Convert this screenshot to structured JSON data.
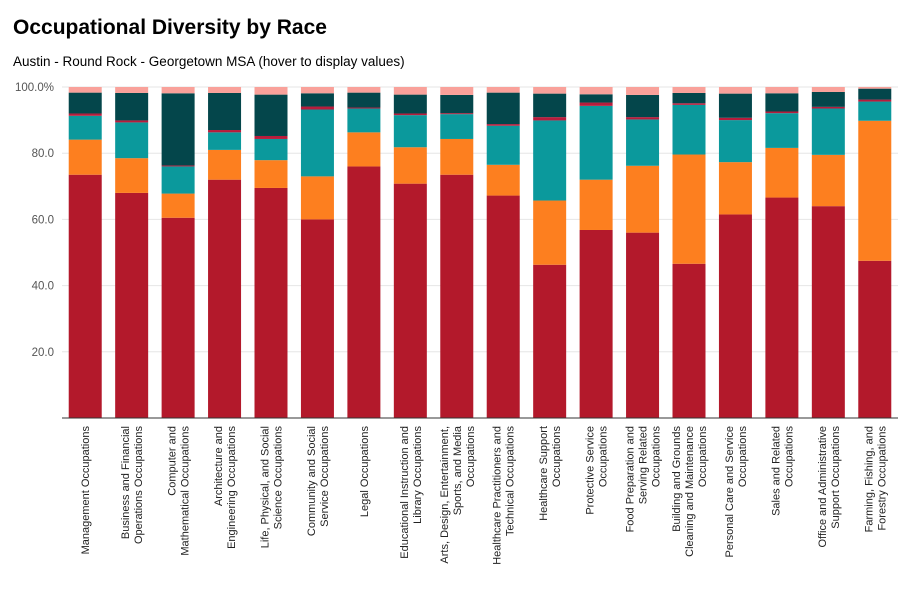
{
  "title": "Occupational Diversity by Race",
  "subtitle": "Austin - Round Rock - Georgetown MSA (hover to display values)",
  "colors": [
    "#b3192b",
    "#fd7f1f",
    "#0b999c",
    "#b71c3c",
    "#04464b",
    "#f9a19a"
  ],
  "chart_data": {
    "type": "bar",
    "stacked": true,
    "ylim": [
      0,
      100
    ],
    "yticks": [
      "20.0",
      "40.0",
      "60.0",
      "80.0",
      "100.0%"
    ],
    "ytick_values": [
      20,
      40,
      60,
      80,
      100
    ],
    "grid": true,
    "categories": [
      [
        "Management Occupations"
      ],
      [
        "Business and Financial",
        "Operations Occupations"
      ],
      [
        "Computer and",
        "Mathematical Occupations"
      ],
      [
        "Architecture and",
        "Engineering Occupations"
      ],
      [
        "Life, Physical, and Social",
        "Science Occupations"
      ],
      [
        "Community and Social",
        "Service Occupations"
      ],
      [
        "Legal Occupations"
      ],
      [
        "Educational Instruction and",
        "Library Occupations"
      ],
      [
        "Arts, Design, Entertainment,",
        "Sports, and Media",
        "Occupations"
      ],
      [
        "Healthcare Practitioners and",
        "Technical Occupations"
      ],
      [
        "Healthcare Support",
        "Occupations"
      ],
      [
        "Protective Service",
        "Occupations"
      ],
      [
        "Food Preparation and",
        "Serving Related",
        "Occupations"
      ],
      [
        "Building and Grounds",
        "Cleaning and Maintenance",
        "Occupations"
      ],
      [
        "Personal Care and Service",
        "Occupations"
      ],
      [
        "Sales and Related",
        "Occupations"
      ],
      [
        "Office and Administrative",
        "Support Occupations"
      ],
      [
        "Farming, Fishing, and",
        "Forestry Occupations"
      ]
    ],
    "series": [
      {
        "values": [
          73.5,
          68,
          60.5,
          72,
          69.5,
          60,
          76,
          70.8,
          73.5,
          67.2,
          46.3,
          56.8,
          56,
          46.6,
          61.5,
          66.6,
          64,
          47.5
        ]
      },
      {
        "values": [
          10.6,
          10.5,
          7.3,
          9,
          8.4,
          13,
          10.3,
          11,
          10.8,
          9.3,
          19.4,
          15.2,
          20.2,
          33,
          15.8,
          15,
          15.5,
          42.3
        ]
      },
      {
        "values": [
          7.2,
          10.8,
          8.2,
          5.3,
          6.4,
          20.2,
          7.2,
          9.7,
          7.5,
          11.8,
          24.2,
          22.3,
          14,
          15,
          12.7,
          10.5,
          14,
          5.8
        ]
      },
      {
        "values": [
          0.7,
          0.6,
          0.3,
          0.7,
          0.9,
          0.9,
          0.3,
          0.5,
          0.3,
          0.5,
          1,
          1,
          0.7,
          0.5,
          0.7,
          0.5,
          0.5,
          0.6
        ]
      },
      {
        "values": [
          6.3,
          8.3,
          21.8,
          11.2,
          12.5,
          4,
          4.5,
          5.7,
          5.5,
          9.5,
          7.1,
          2.5,
          6.7,
          3.1,
          7.3,
          5.5,
          4.5,
          3.3
        ]
      },
      {
        "values": [
          1.7,
          1.8,
          1.9,
          1.8,
          2.3,
          1.9,
          1.7,
          2.3,
          2.4,
          1.7,
          2,
          2.2,
          2.4,
          1.8,
          2,
          1.9,
          1.5,
          0.5
        ]
      }
    ]
  }
}
